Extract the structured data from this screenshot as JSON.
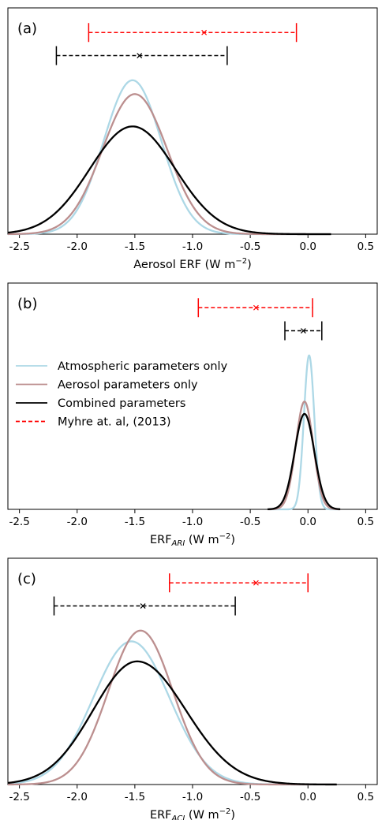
{
  "colors": {
    "atmospheric": "#add8e6",
    "aerosol": "#bc8f8f",
    "combined": "#000000",
    "myhre": "#ff0000"
  },
  "legend": {
    "placement": "middle-left of panel (b)",
    "entries": [
      {
        "label": "Atmospheric parameters only",
        "style": "solid",
        "color": "#add8e6"
      },
      {
        "label": "Aerosol parameters only",
        "style": "solid",
        "color": "#bc8f8f"
      },
      {
        "label": "Combined parameters",
        "style": "solid",
        "color": "#000000"
      },
      {
        "label": "Myhre at. al, (2013)",
        "style": "dashed",
        "color": "#ff0000"
      }
    ]
  },
  "chart_data": [
    {
      "type": "line",
      "panel_label": "(a)",
      "xlabel": "Aerosol ERF (W m",
      "xlabel_sub": "",
      "xlabel_sup": "−2",
      "xlim": [
        -2.6,
        0.6
      ],
      "xticks": [
        -2.5,
        -2.0,
        -1.5,
        -1.0,
        -0.5,
        0.0,
        0.5
      ],
      "xtick_labels": [
        "-2.5",
        "-2.0",
        "-1.5",
        "-1.0",
        "-0.5",
        "0.0",
        "0.5"
      ],
      "yticks_visible": false,
      "ylim": [
        0,
        1.47
      ],
      "series": [
        {
          "name": "Atmospheric parameters only",
          "kind": "gaussian",
          "mean": -1.52,
          "sd": 0.25,
          "peak": 1.0,
          "x_range": [
            -2.6,
            0.2
          ]
        },
        {
          "name": "Aerosol parameters only",
          "kind": "gaussian",
          "mean": -1.5,
          "sd": 0.28,
          "peak": 0.91,
          "x_range": [
            -2.6,
            0.2
          ]
        },
        {
          "name": "Combined parameters",
          "kind": "gaussian",
          "mean": -1.52,
          "sd": 0.37,
          "peak": 0.7,
          "x_range": [
            -2.6,
            0.2
          ]
        }
      ],
      "ranges": [
        {
          "name": "Myhre at. al, (2013)",
          "low": -1.9,
          "best": -0.9,
          "high": -0.1,
          "y": 1.31
        },
        {
          "name": "Combined parameters",
          "low": -2.18,
          "best": -1.46,
          "high": -0.7,
          "y": 1.16
        }
      ]
    },
    {
      "type": "line",
      "panel_label": "(b)",
      "xlabel": "ERF",
      "xlabel_sub": "ARI",
      "xlabel_sup": "−2",
      "xlabel_tail": " (W m",
      "xlim": [
        -2.6,
        0.6
      ],
      "xticks": [
        -2.5,
        -2.0,
        -1.5,
        -1.0,
        -0.5,
        0.0,
        0.5
      ],
      "xtick_labels": [
        "-2.5",
        "-2.0",
        "-1.5",
        "-1.0",
        "-0.5",
        "0.0",
        "0.5"
      ],
      "yticks_visible": false,
      "ylim": [
        0,
        1.47
      ],
      "series": [
        {
          "name": "Atmospheric parameters only",
          "kind": "gaussian",
          "mean": 0.01,
          "sd": 0.045,
          "peak": 1.0,
          "x_range": [
            -0.35,
            0.28
          ]
        },
        {
          "name": "Aerosol parameters only",
          "kind": "gaussian",
          "mean": -0.03,
          "sd": 0.075,
          "peak": 0.7,
          "x_range": [
            -0.35,
            0.28
          ]
        },
        {
          "name": "Combined parameters",
          "kind": "gaussian",
          "mean": -0.03,
          "sd": 0.085,
          "peak": 0.62,
          "x_range": [
            -0.35,
            0.28
          ]
        }
      ],
      "ranges": [
        {
          "name": "Myhre at. al, (2013)",
          "low": -0.95,
          "best": -0.45,
          "high": 0.04,
          "y": 1.31
        },
        {
          "name": "Combined parameters",
          "low": -0.2,
          "best": -0.04,
          "high": 0.12,
          "y": 1.16
        }
      ]
    },
    {
      "type": "line",
      "panel_label": "(c)",
      "xlabel": "ERF",
      "xlabel_sub": "ACI",
      "xlabel_sup": "−2",
      "xlabel_tail": " (W m",
      "xlim": [
        -2.6,
        0.6
      ],
      "xticks": [
        -2.5,
        -2.0,
        -1.5,
        -1.0,
        -0.5,
        0.0,
        0.5
      ],
      "xtick_labels": [
        "-2.5",
        "-2.0",
        "-1.5",
        "-1.0",
        "-0.5",
        "0.0",
        "0.5"
      ],
      "yticks_visible": false,
      "ylim": [
        0,
        1.47
      ],
      "series": [
        {
          "name": "Atmospheric parameters only",
          "kind": "gaussian",
          "mean": -1.53,
          "sd": 0.33,
          "peak": 0.93,
          "x_range": [
            -2.6,
            0.25
          ]
        },
        {
          "name": "Aerosol parameters only",
          "kind": "gaussian",
          "mean": -1.45,
          "sd": 0.28,
          "peak": 1.0,
          "x_range": [
            -2.6,
            0.25
          ]
        },
        {
          "name": "Combined parameters",
          "kind": "skew",
          "mean": -1.48,
          "sd_left": 0.38,
          "sd_right": 0.42,
          "peak": 0.8,
          "x_range": [
            -2.6,
            0.25
          ]
        }
      ],
      "ranges": [
        {
          "name": "Myhre at. al, (2013)",
          "low": -1.2,
          "best": -0.45,
          "high": 0.0,
          "y": 1.31
        },
        {
          "name": "Combined parameters",
          "low": -2.2,
          "best": -1.43,
          "high": -0.63,
          "y": 1.16
        }
      ]
    }
  ]
}
